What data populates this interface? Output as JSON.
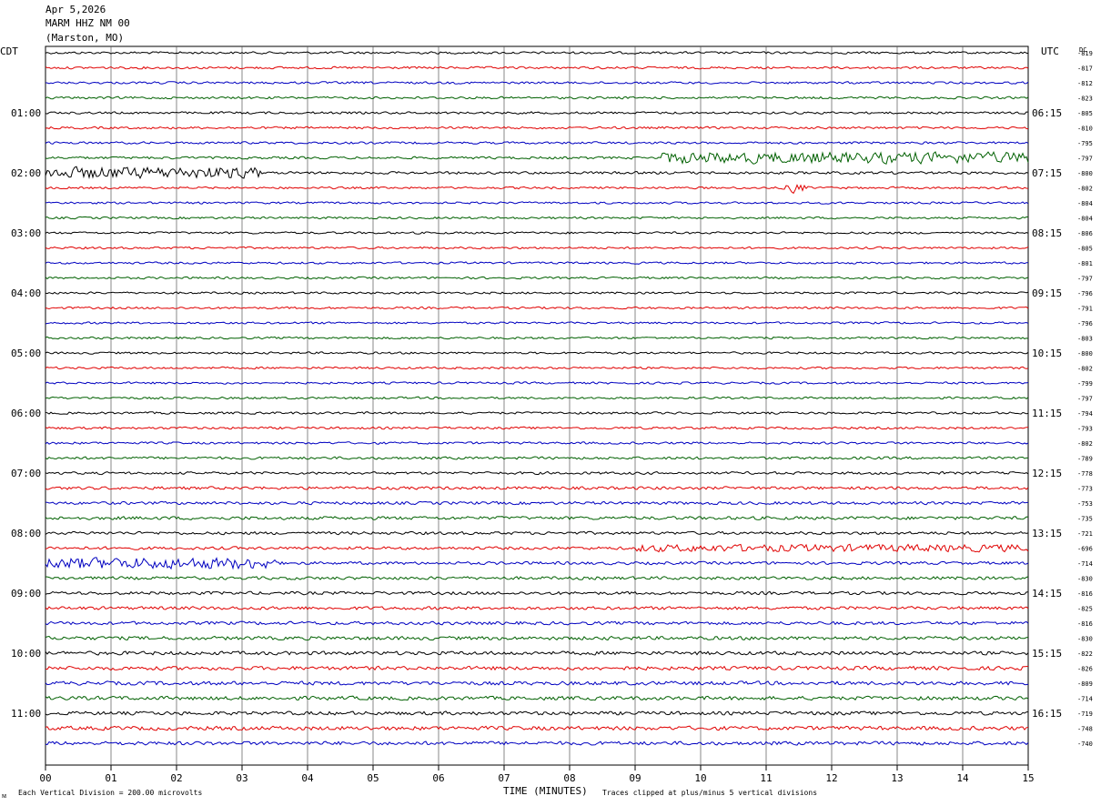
{
  "header": {
    "date": "Apr 5,2026",
    "station": "MARM HHZ NM 00",
    "location": "(Marston, MO)"
  },
  "left_axis_title": "CDT",
  "right_axis_title": "UTC",
  "dc_title": "DC",
  "footer": {
    "scale_note": "Each Vertical Division =  200.00 microvolts",
    "clip_note": "Traces clipped at plus/minus 5 vertical divisions",
    "corner_mark": "ᴍ"
  },
  "trace_colors": [
    "#000000",
    "#e00000",
    "#0000c0",
    "#006000"
  ],
  "chart_data": {
    "type": "line",
    "title": "",
    "xlabel": "TIME (MINUTES)",
    "xticks": [
      "00",
      "01",
      "02",
      "03",
      "04",
      "05",
      "06",
      "07",
      "08",
      "09",
      "10",
      "11",
      "12",
      "13",
      "14",
      "15"
    ],
    "xlim": [
      0,
      15
    ],
    "hour_labels_cdt": [
      "01:00",
      "02:00",
      "03:00",
      "04:00",
      "05:00",
      "06:00",
      "07:00",
      "08:00",
      "09:00",
      "10:00",
      "11:00"
    ],
    "hour_labels_utc": [
      "06:15",
      "07:15",
      "08:15",
      "09:15",
      "10:15",
      "11:15",
      "12:15",
      "13:15",
      "14:15",
      "15:15",
      "16:15"
    ],
    "dc_offsets": [
      -819,
      -817,
      -812,
      -823,
      -805,
      -810,
      -795,
      -797,
      -800,
      -802,
      -804,
      -804,
      -806,
      -805,
      -801,
      -797,
      -796,
      -791,
      -796,
      -803,
      -800,
      -802,
      -799,
      -797,
      -794,
      -793,
      -802,
      -789,
      -778,
      -773,
      -753,
      -735,
      -721,
      -696,
      -714,
      -830,
      -816,
      -825,
      -816,
      -830,
      -822,
      -826,
      -809,
      -714,
      -719,
      -748,
      -740
    ],
    "trace_count": 47,
    "events": [
      {
        "trace": 7,
        "start_min": 9.4,
        "end_min": 15,
        "amplitude": "high"
      },
      {
        "trace": 8,
        "start_min": 0,
        "end_min": 3.3,
        "amplitude": "high"
      },
      {
        "trace": 9,
        "start_min": 11.2,
        "end_min": 11.7,
        "amplitude": "burst"
      },
      {
        "trace": 33,
        "start_min": 9.0,
        "end_min": 15,
        "amplitude": "medium"
      },
      {
        "trace": 34,
        "start_min": 0,
        "end_min": 3.5,
        "amplitude": "high"
      }
    ]
  }
}
